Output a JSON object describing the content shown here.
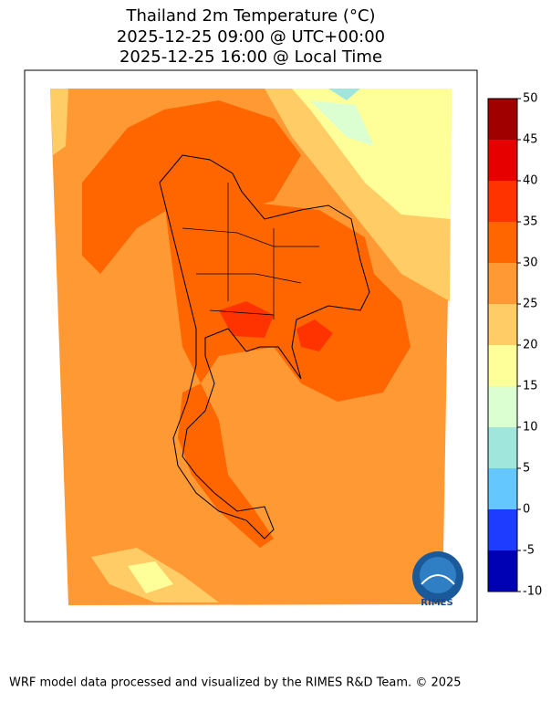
{
  "title": [
    "Thailand 2m Temperature (°C)",
    "2025-12-25 09:00 @ UTC+00:00",
    "2025-12-25 16:00 @ Local Time"
  ],
  "colorbar": {
    "lim": [
      -10,
      50
    ],
    "levels": [
      -10,
      -5,
      0,
      5,
      10,
      15,
      20,
      25,
      30,
      35,
      40,
      45,
      50
    ],
    "colors": [
      "#0000b4",
      "#1e3cff",
      "#64c8ff",
      "#a0e6dc",
      "#dcffd2",
      "#ffff99",
      "#ffcc66",
      "#ff9933",
      "#ff6600",
      "#ff3300",
      "#e60000",
      "#a00000"
    ]
  },
  "logo": "RIMES",
  "footer": "WRF model data processed and visualized by the RIMES R&D Team. © 2025"
}
